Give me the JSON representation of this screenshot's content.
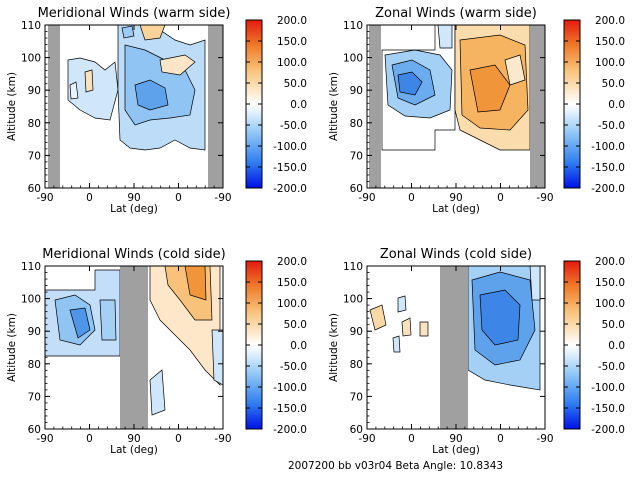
{
  "footer": "2007200 bb v03r04   Beta Angle: 10.8343",
  "colorbar": {
    "min": -200,
    "max": 200,
    "tick_labels": [
      "200.0",
      "150.0",
      "100.0",
      "50.0",
      "0.0",
      "-50.0",
      "-100.0",
      "-150.0",
      "-200.0"
    ],
    "tick_values": [
      200,
      150,
      100,
      50,
      0,
      -50,
      -100,
      -150,
      -200
    ],
    "colors": {
      "neg_strong": "#0a1cf0",
      "neg_mid": "#3a8ef0",
      "neg_light": "#c8e4fb",
      "zero": "#ffffff",
      "pos_light": "#fbe3c0",
      "pos_mid": "#f5a640",
      "pos_strong": "#e83010"
    }
  },
  "chart_data": [
    {
      "type": "heatmap",
      "title": "Meridional Winds (warm side)",
      "xlabel": "Lat (deg)",
      "ylabel": "Altitude (km)",
      "x_tick_labels": [
        "-90",
        "0",
        "90",
        "0",
        "-90"
      ],
      "y_tick_labels": [
        "60",
        "70",
        "80",
        "90",
        "100",
        "110"
      ],
      "ylim": [
        60,
        110
      ],
      "no_data_color": "#a0a0a0"
    },
    {
      "type": "heatmap",
      "title": "Zonal Winds (warm side)",
      "xlabel": "Lat (deg)",
      "ylabel": "Altitude (km)",
      "x_tick_labels": [
        "-90",
        "0",
        "90",
        "0",
        "-90"
      ],
      "y_tick_labels": [
        "60",
        "70",
        "80",
        "90",
        "100",
        "110"
      ],
      "ylim": [
        60,
        110
      ],
      "no_data_color": "#a0a0a0"
    },
    {
      "type": "heatmap",
      "title": "Meridional Winds (cold side)",
      "xlabel": "Lat (deg)",
      "ylabel": "Altitude (km)",
      "x_tick_labels": [
        "-90",
        "0",
        "90",
        "0",
        "-90"
      ],
      "y_tick_labels": [
        "60",
        "70",
        "80",
        "90",
        "100",
        "110"
      ],
      "ylim": [
        60,
        110
      ],
      "no_data_color": "#a0a0a0"
    },
    {
      "type": "heatmap",
      "title": "Zonal Winds (cold side)",
      "xlabel": "Lat (deg)",
      "ylabel": "Altitude (km)",
      "x_tick_labels": [
        "-90",
        "0",
        "90",
        "0",
        "-90"
      ],
      "y_tick_labels": [
        "60",
        "70",
        "80",
        "90",
        "100",
        "110"
      ],
      "ylim": [
        60,
        110
      ],
      "no_data_color": "#a0a0a0"
    }
  ]
}
